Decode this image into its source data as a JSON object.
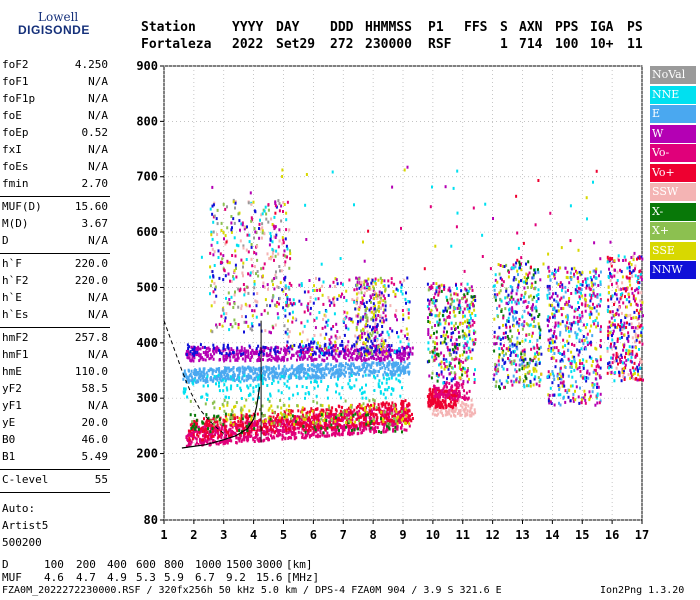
{
  "logo": {
    "line1": "Lowell",
    "line2": "DIGISONDE"
  },
  "header": {
    "labels": [
      "Station",
      "YYYY",
      "DAY",
      "DDD",
      "HHMMSS",
      "P1",
      "FFS",
      "S",
      "AXN",
      "PPS",
      "IGA",
      "PS"
    ],
    "values": [
      "Fortaleza",
      "2022",
      "Set29",
      "272",
      "230000",
      "RSF",
      "1",
      "714",
      "100",
      "10+",
      "11"
    ]
  },
  "params": {
    "group1": [
      {
        "label": "foF2",
        "value": "4.250"
      },
      {
        "label": "foF1",
        "value": "N/A"
      },
      {
        "label": "foF1p",
        "value": "N/A"
      },
      {
        "label": "foE",
        "value": "N/A"
      },
      {
        "label": "foEp",
        "value": "0.52"
      },
      {
        "label": "fxI",
        "value": "N/A"
      },
      {
        "label": "foEs",
        "value": "N/A"
      },
      {
        "label": "fmin",
        "value": "2.70"
      }
    ],
    "group2": [
      {
        "label": "MUF(D)",
        "value": "15.60"
      },
      {
        "label": "M(D)",
        "value": "3.67"
      },
      {
        "label": "D",
        "value": "N/A"
      }
    ],
    "group3": [
      {
        "label": "h`F",
        "value": "220.0"
      },
      {
        "label": "h`F2",
        "value": "220.0"
      },
      {
        "label": "h`E",
        "value": "N/A"
      },
      {
        "label": "h`Es",
        "value": "N/A"
      }
    ],
    "group4": [
      {
        "label": "hmF2",
        "value": "257.8"
      },
      {
        "label": "hmF1",
        "value": "N/A"
      },
      {
        "label": "hmE",
        "value": "110.0"
      },
      {
        "label": "yF2",
        "value": "58.5"
      },
      {
        "label": "yF1",
        "value": "N/A"
      },
      {
        "label": "yE",
        "value": "20.0"
      },
      {
        "label": "B0",
        "value": "46.0"
      },
      {
        "label": "B1",
        "value": "5.49"
      }
    ],
    "clevel": {
      "label": "C-level",
      "value": "55"
    },
    "auto": [
      "Auto:",
      "Artist5",
      "500200"
    ]
  },
  "legend": [
    {
      "label": "NoVal",
      "color": "#9a9a9a"
    },
    {
      "label": "NNE",
      "color": "#00e0f0"
    },
    {
      "label": "E",
      "color": "#4aa8f0"
    },
    {
      "label": "W",
      "color": "#b400b4"
    },
    {
      "label": "Vo-",
      "color": "#e0007a"
    },
    {
      "label": "Vo+",
      "color": "#ee0030"
    },
    {
      "label": "SSW",
      "color": "#f4b4b4"
    },
    {
      "label": "X-",
      "color": "#087808"
    },
    {
      "label": "X+",
      "color": "#8cc050"
    },
    {
      "label": "SSE",
      "color": "#d8d800"
    },
    {
      "label": "NNW",
      "color": "#1010d8"
    }
  ],
  "bottom": {
    "d_label": "D",
    "d_values": [
      "100",
      "200",
      "400",
      "600",
      "800",
      "1000",
      "1500",
      "3000",
      "[km]"
    ],
    "muf_label": "MUF",
    "muf_values": [
      "4.6",
      "4.7",
      "4.9",
      "5.3",
      "5.9",
      "6.7",
      "9.2",
      "15.6",
      "[MHz]"
    ],
    "footer_left": "FZA0M_2022272230000.RSF / 320fx256h 50 kHz 5.0 km / DPS-4 FZA0M 904 / 3.9 S 321.6 E",
    "footer_right": "Ion2Png 1.3.20"
  },
  "chart_data": {
    "type": "scatter",
    "xlim": [
      1,
      17
    ],
    "ylim": [
      80,
      900
    ],
    "x_ticks": [
      1,
      2,
      3,
      4,
      5,
      6,
      7,
      8,
      9,
      10,
      11,
      12,
      13,
      14,
      15,
      16,
      17
    ],
    "y_ticks": [
      80,
      200,
      300,
      400,
      500,
      600,
      700,
      800,
      900
    ],
    "grid": true,
    "legend_position": "right",
    "trace_bands": [
      {
        "series": "Vo-",
        "color": "#e0007a",
        "x_range": [
          1.7,
          9.2
        ],
        "h_start": [
          215,
          250
        ],
        "h_end": [
          245,
          290
        ],
        "density": 900
      },
      {
        "series": "Vo+",
        "color": "#ee0030",
        "x_range": [
          1.8,
          9.3
        ],
        "h_start": [
          225,
          265
        ],
        "h_end": [
          260,
          300
        ],
        "density": 500
      },
      {
        "series": "E",
        "color": "#4aa8f0",
        "x_range": [
          1.6,
          9.2
        ],
        "h_start": [
          330,
          355
        ],
        "h_end": [
          345,
          370
        ],
        "density": 650
      },
      {
        "series": "W",
        "color": "#b400b4",
        "x_range": [
          1.7,
          9.3
        ],
        "h_start": [
          370,
          395
        ],
        "h_end": [
          370,
          395
        ],
        "density": 500
      },
      {
        "series": "NNW",
        "color": "#1010d8",
        "x_range": [
          1.7,
          9.3
        ],
        "h_start": [
          380,
          400
        ],
        "h_end": [
          380,
          400
        ],
        "density": 120
      },
      {
        "series": "SSE",
        "color": "#d8d800",
        "x_range": [
          2.8,
          9.2
        ],
        "h_start": [
          255,
          290
        ],
        "h_end": [
          255,
          290
        ],
        "density": 100
      },
      {
        "series": "NNE",
        "color": "#00e0f0",
        "x_range": [
          1.6,
          9.0
        ],
        "h_start": [
          300,
          345
        ],
        "h_end": [
          300,
          345
        ],
        "density": 160
      },
      {
        "series": "X-",
        "color": "#087808",
        "x_range": [
          1.8,
          9.0
        ],
        "h_start": [
          240,
          275
        ],
        "h_end": [
          240,
          275
        ],
        "density": 80
      },
      {
        "series": "X+",
        "color": "#8cc050",
        "x_range": [
          1.8,
          9.0
        ],
        "h_start": [
          255,
          300
        ],
        "h_end": [
          255,
          300
        ],
        "density": 70
      },
      {
        "series": "SSW",
        "color": "#f4b4b4",
        "x_range": [
          9.8,
          11.4
        ],
        "h_start": [
          270,
          300
        ],
        "h_end": [
          270,
          300
        ],
        "density": 120
      },
      {
        "series": "Vo+",
        "color": "#ee0030",
        "x_range": [
          9.8,
          10.8
        ],
        "h_start": [
          285,
          320
        ],
        "h_end": [
          285,
          320
        ],
        "density": 160
      },
      {
        "series": "Vo-",
        "color": "#e0007a",
        "x_range": [
          10.0,
          11.2
        ],
        "h_start": [
          300,
          330
        ],
        "h_end": [
          300,
          330
        ],
        "density": 80
      }
    ],
    "scatter_clouds": [
      {
        "x_range": [
          2.5,
          5.2
        ],
        "h_range": [
          420,
          660
        ],
        "count": 380,
        "colors": [
          "#d8d800",
          "#e0007a",
          "#b400b4",
          "#f4b4b4",
          "#1010d8",
          "#00e0f0",
          "#8cc050",
          "#9a9a9a"
        ]
      },
      {
        "x_range": [
          5.0,
          9.2
        ],
        "h_range": [
          380,
          520
        ],
        "count": 320,
        "colors": [
          "#e0007a",
          "#b400b4",
          "#1010d8",
          "#d8d800",
          "#f4b4b4",
          "#00e0f0"
        ]
      },
      {
        "x_range": [
          7.4,
          8.4
        ],
        "h_range": [
          380,
          520
        ],
        "count": 220,
        "colors": [
          "#1010d8",
          "#b400b4",
          "#d8d800",
          "#f4b4b4",
          "#8cc050"
        ]
      },
      {
        "x_range": [
          9.8,
          11.4
        ],
        "h_range": [
          330,
          510
        ],
        "count": 380,
        "colors": [
          "#1010d8",
          "#b400b4",
          "#e0007a",
          "#d8d800",
          "#00e0f0",
          "#8cc050",
          "#087808"
        ]
      },
      {
        "x_range": [
          12.0,
          13.6
        ],
        "h_range": [
          320,
          550
        ],
        "count": 420,
        "colors": [
          "#00e0f0",
          "#b400b4",
          "#e0007a",
          "#1010d8",
          "#d8d800",
          "#087808",
          "#8cc050",
          "#4aa8f0"
        ]
      },
      {
        "x_range": [
          13.8,
          15.6
        ],
        "h_range": [
          290,
          540
        ],
        "count": 520,
        "colors": [
          "#b400b4",
          "#1010d8",
          "#e0007a",
          "#00e0f0",
          "#4aa8f0",
          "#d8d800"
        ]
      },
      {
        "x_range": [
          15.8,
          17.0
        ],
        "h_range": [
          330,
          560
        ],
        "count": 380,
        "colors": [
          "#e0007a",
          "#b400b4",
          "#1010d8",
          "#d8d800",
          "#00e0f0",
          "#ee0030",
          "#f4b4b4"
        ]
      },
      {
        "x_range": [
          2.0,
          16.8
        ],
        "h_range": [
          520,
          720
        ],
        "count": 70,
        "colors": [
          "#d8d800",
          "#ee0030",
          "#e0007a",
          "#00e0f0",
          "#b400b4"
        ]
      }
    ],
    "profile_curve": {
      "color": "#000000",
      "dashed": [
        [
          1.0,
          440
        ],
        [
          1.3,
          395
        ],
        [
          1.6,
          350
        ],
        [
          1.9,
          310
        ],
        [
          2.2,
          280
        ],
        [
          2.5,
          260
        ],
        [
          2.8,
          245
        ],
        [
          3.1,
          232
        ]
      ],
      "solid": [
        [
          1.6,
          210
        ],
        [
          2.4,
          216
        ],
        [
          3.0,
          225
        ],
        [
          3.4,
          232
        ],
        [
          3.8,
          245
        ],
        [
          4.0,
          262
        ],
        [
          4.1,
          285
        ],
        [
          4.2,
          320
        ]
      ]
    },
    "fof2_marker": {
      "x": 4.25,
      "h_range": [
        220,
        440
      ],
      "color": "#000000"
    }
  }
}
